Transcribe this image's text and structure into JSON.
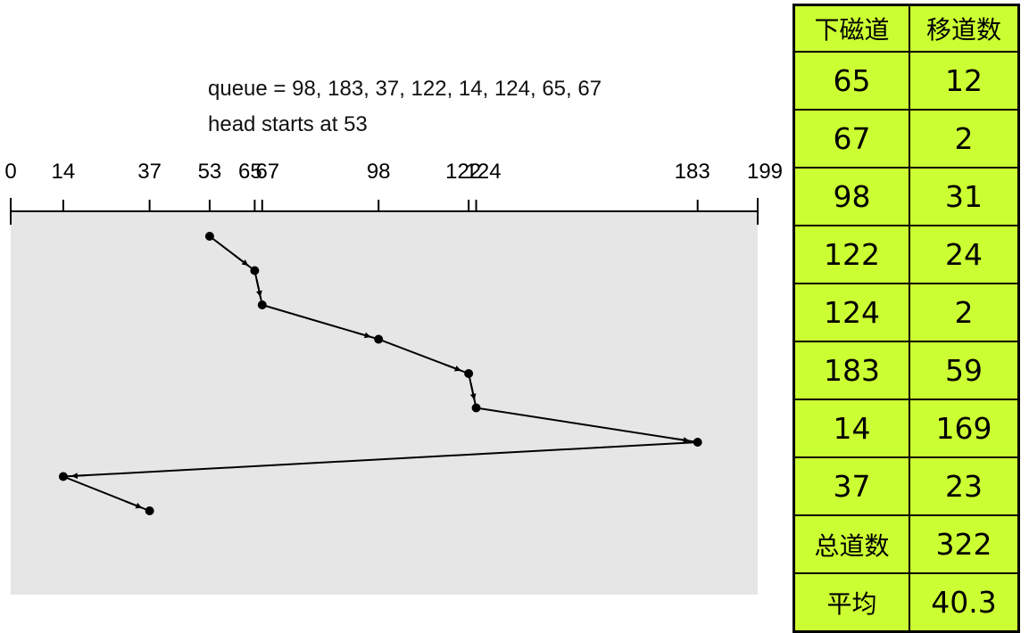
{
  "caption": {
    "queue_line": "queue = 98, 183, 37, 122, 14, 124, 65, 67",
    "head_line": "head starts at 53"
  },
  "axis": {
    "min": 0,
    "max": 199,
    "tick_labels": [
      "0",
      "14",
      "37",
      "53",
      "65",
      "67",
      "98",
      "122",
      "124",
      "183",
      "199"
    ]
  },
  "diagram": {
    "head_start": 53,
    "service_order": [
      53,
      65,
      67,
      98,
      122,
      124,
      183,
      14,
      37
    ],
    "colors": {
      "panel": "#e6e6e6",
      "line": "#000000",
      "table_fill": "#ccff33"
    }
  },
  "table": {
    "headers": [
      "下磁道",
      "移道数"
    ],
    "rows": [
      [
        "65",
        "12"
      ],
      [
        "67",
        "2"
      ],
      [
        "98",
        "31"
      ],
      [
        "122",
        "24"
      ],
      [
        "124",
        "2"
      ],
      [
        "183",
        "59"
      ],
      [
        "14",
        "169"
      ],
      [
        "37",
        "23"
      ]
    ],
    "total_label": "总道数",
    "total_value": "322",
    "avg_label": "平均",
    "avg_value": "40.3"
  }
}
